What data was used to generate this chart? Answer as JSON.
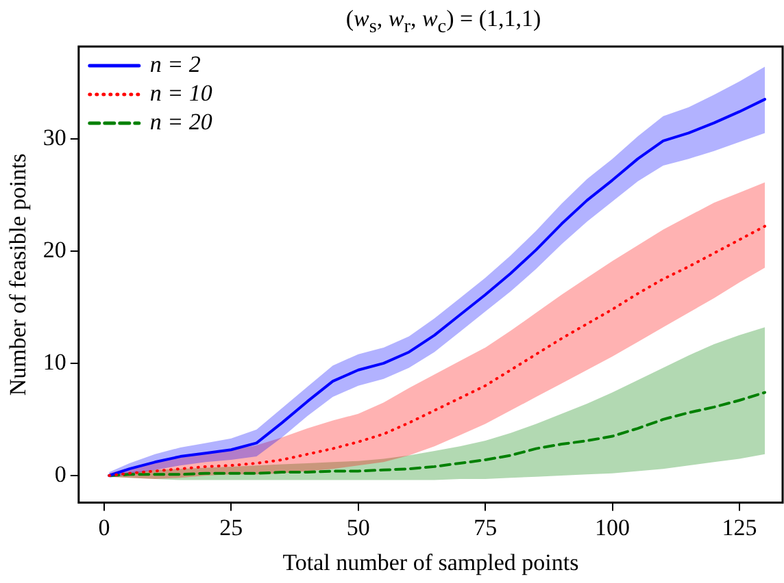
{
  "chart_data": {
    "type": "line",
    "title": "(w$_{s}$, w$_{r}$, w$_{c}$) = (1,1,1)",
    "xlabel": "Total number of sampled points",
    "ylabel": "Number of feasible points",
    "x": [
      1,
      5,
      10,
      15,
      20,
      25,
      30,
      35,
      40,
      45,
      50,
      55,
      60,
      65,
      70,
      75,
      80,
      85,
      90,
      95,
      100,
      105,
      110,
      115,
      120,
      125,
      130
    ],
    "series": [
      {
        "name": "n = 2",
        "color": "#0000ff",
        "line_style": "solid",
        "values": [
          0,
          0.6,
          1.2,
          1.7,
          2.0,
          2.3,
          2.9,
          4.7,
          6.6,
          8.4,
          9.4,
          10.0,
          11.0,
          12.5,
          14.3,
          16.1,
          18.0,
          20.1,
          22.4,
          24.5,
          26.3,
          28.2,
          29.8,
          30.5,
          31.4,
          32.4,
          33.5
        ],
        "lower": [
          -0.2,
          0.1,
          0.5,
          0.9,
          1.2,
          1.4,
          1.7,
          3.4,
          5.3,
          7.0,
          8.0,
          8.6,
          9.6,
          11.0,
          12.8,
          14.6,
          16.4,
          18.4,
          20.6,
          22.6,
          24.4,
          26.2,
          27.6,
          28.2,
          28.9,
          29.7,
          30.5
        ],
        "upper": [
          0.3,
          1.1,
          1.9,
          2.5,
          2.9,
          3.3,
          4.1,
          6.0,
          7.9,
          9.8,
          10.8,
          11.4,
          12.4,
          14.0,
          15.8,
          17.6,
          19.6,
          21.8,
          24.2,
          26.4,
          28.2,
          30.2,
          32.0,
          32.8,
          33.9,
          35.1,
          36.4
        ]
      },
      {
        "name": "n = 10",
        "color": "#ff0000",
        "line_style": "dotted",
        "values": [
          0,
          0.2,
          0.4,
          0.6,
          0.8,
          0.9,
          1.1,
          1.4,
          1.9,
          2.4,
          3.0,
          3.7,
          4.7,
          5.8,
          6.9,
          8.0,
          9.4,
          10.8,
          12.2,
          13.5,
          14.8,
          16.2,
          17.5,
          18.6,
          19.8,
          21.0,
          22.2
        ],
        "lower": [
          -0.1,
          -0.2,
          -0.3,
          -0.2,
          0,
          0.1,
          0.1,
          0.2,
          0.4,
          0.6,
          0.9,
          1.2,
          1.8,
          2.6,
          3.6,
          4.6,
          5.8,
          7.0,
          8.2,
          9.4,
          10.6,
          11.9,
          13.2,
          14.5,
          15.8,
          17.2,
          18.5
        ],
        "upper": [
          0.2,
          0.7,
          1.2,
          1.6,
          2.0,
          2.3,
          2.7,
          3.4,
          4.2,
          4.9,
          5.5,
          6.5,
          7.8,
          9.0,
          10.2,
          11.4,
          12.9,
          14.5,
          16.1,
          17.6,
          19.1,
          20.5,
          21.9,
          23.1,
          24.3,
          25.2,
          26.1
        ]
      },
      {
        "name": "n = 20",
        "color": "#008000",
        "line_style": "dashed",
        "values": [
          0,
          0.1,
          0.1,
          0.1,
          0.2,
          0.2,
          0.2,
          0.3,
          0.3,
          0.4,
          0.4,
          0.5,
          0.6,
          0.8,
          1.1,
          1.4,
          1.8,
          2.4,
          2.8,
          3.1,
          3.5,
          4.2,
          5.0,
          5.6,
          6.1,
          6.7,
          7.4
        ],
        "lower": [
          -0.1,
          -0.2,
          -0.3,
          -0.4,
          -0.4,
          -0.4,
          -0.4,
          -0.4,
          -0.4,
          -0.4,
          -0.4,
          -0.4,
          -0.4,
          -0.4,
          -0.3,
          -0.3,
          -0.2,
          -0.1,
          0,
          0.1,
          0.2,
          0.4,
          0.6,
          0.9,
          1.2,
          1.5,
          1.9
        ],
        "upper": [
          0.1,
          0.3,
          0.5,
          0.6,
          0.7,
          0.8,
          0.9,
          1.0,
          1.1,
          1.2,
          1.3,
          1.5,
          1.8,
          2.2,
          2.6,
          3.1,
          3.8,
          4.6,
          5.5,
          6.4,
          7.4,
          8.5,
          9.6,
          10.7,
          11.7,
          12.5,
          13.2
        ]
      }
    ],
    "xlim": [
      -5,
      133.5
    ],
    "xticks": [
      0,
      25,
      50,
      75,
      100,
      125
    ],
    "ylim": [
      -2.4,
      38.2
    ],
    "yticks": [
      0,
      10,
      20,
      30
    ],
    "grid": false,
    "legend": "top left"
  }
}
